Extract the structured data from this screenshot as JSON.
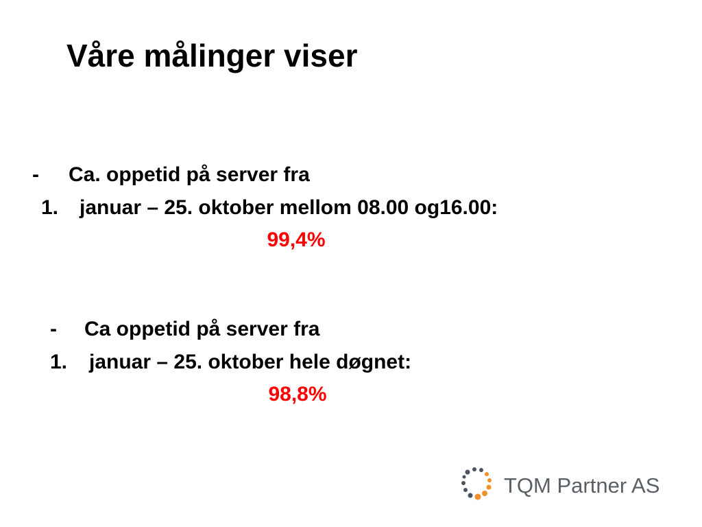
{
  "title": "Våre målinger viser",
  "blocks": [
    {
      "bullet": "-",
      "line1": "Ca. oppetid på server fra",
      "number": "1.",
      "line2": "januar – 25. oktober mellom 08.00 og16.00:",
      "value": "99,4%"
    },
    {
      "bullet": "-",
      "line1": "Ca oppetid på server fra",
      "number": "1.",
      "line2": "januar – 25. oktober hele døgnet:",
      "value": "98,8%"
    }
  ],
  "logo": {
    "text": "TQM Partner AS"
  }
}
